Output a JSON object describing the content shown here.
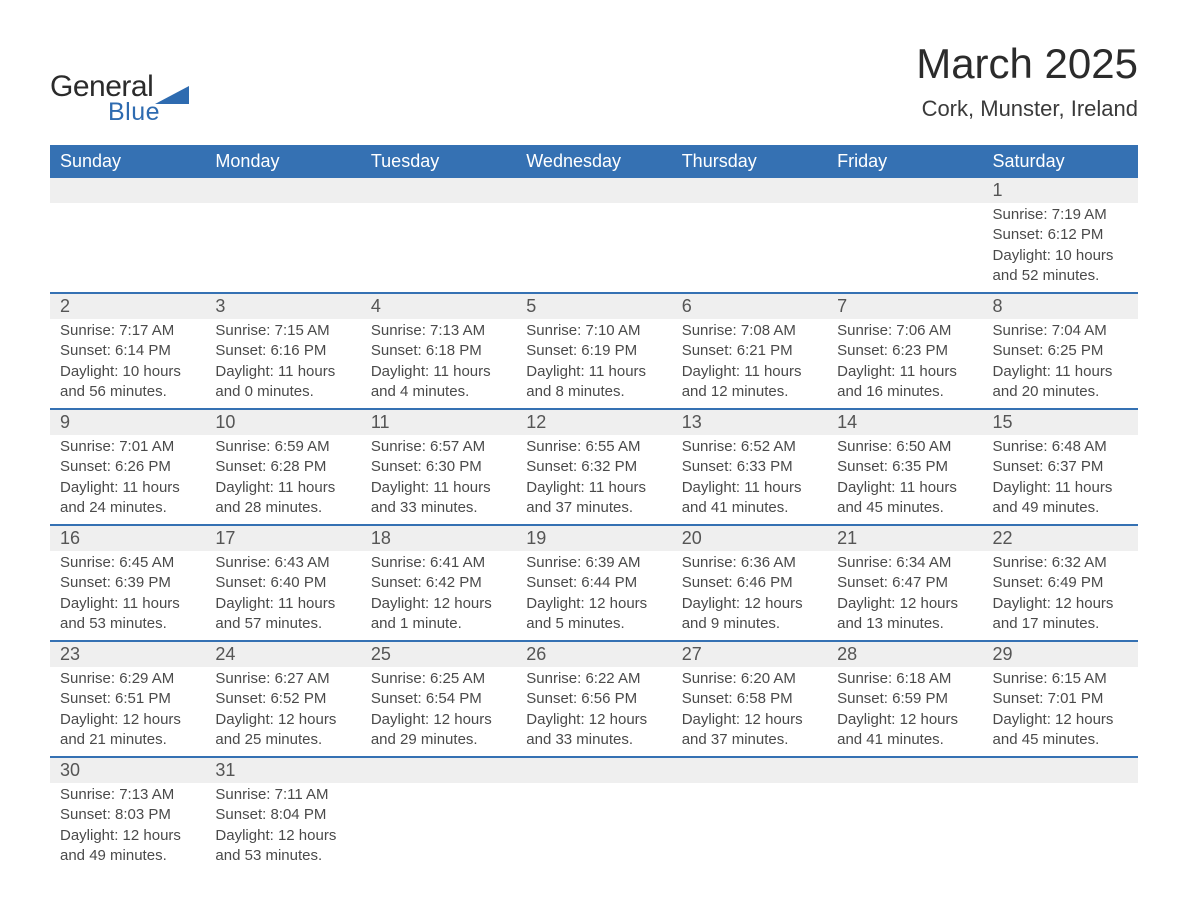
{
  "logo": {
    "text1": "General",
    "text2": "Blue",
    "shape_color": "#2e6bb0"
  },
  "title": "March 2025",
  "location": "Cork, Munster, Ireland",
  "colors": {
    "header_bg": "#3571b3",
    "header_text": "#ffffff",
    "daynum_bg": "#efefef",
    "border": "#3571b3",
    "text": "#4a4a4a"
  },
  "day_headers": [
    "Sunday",
    "Monday",
    "Tuesday",
    "Wednesday",
    "Thursday",
    "Friday",
    "Saturday"
  ],
  "weeks": [
    {
      "nums": [
        "",
        "",
        "",
        "",
        "",
        "",
        "1"
      ],
      "data": [
        "",
        "",
        "",
        "",
        "",
        "",
        "Sunrise: 7:19 AM\nSunset: 6:12 PM\nDaylight: 10 hours and 52 minutes."
      ]
    },
    {
      "nums": [
        "2",
        "3",
        "4",
        "5",
        "6",
        "7",
        "8"
      ],
      "data": [
        "Sunrise: 7:17 AM\nSunset: 6:14 PM\nDaylight: 10 hours and 56 minutes.",
        "Sunrise: 7:15 AM\nSunset: 6:16 PM\nDaylight: 11 hours and 0 minutes.",
        "Sunrise: 7:13 AM\nSunset: 6:18 PM\nDaylight: 11 hours and 4 minutes.",
        "Sunrise: 7:10 AM\nSunset: 6:19 PM\nDaylight: 11 hours and 8 minutes.",
        "Sunrise: 7:08 AM\nSunset: 6:21 PM\nDaylight: 11 hours and 12 minutes.",
        "Sunrise: 7:06 AM\nSunset: 6:23 PM\nDaylight: 11 hours and 16 minutes.",
        "Sunrise: 7:04 AM\nSunset: 6:25 PM\nDaylight: 11 hours and 20 minutes."
      ]
    },
    {
      "nums": [
        "9",
        "10",
        "11",
        "12",
        "13",
        "14",
        "15"
      ],
      "data": [
        "Sunrise: 7:01 AM\nSunset: 6:26 PM\nDaylight: 11 hours and 24 minutes.",
        "Sunrise: 6:59 AM\nSunset: 6:28 PM\nDaylight: 11 hours and 28 minutes.",
        "Sunrise: 6:57 AM\nSunset: 6:30 PM\nDaylight: 11 hours and 33 minutes.",
        "Sunrise: 6:55 AM\nSunset: 6:32 PM\nDaylight: 11 hours and 37 minutes.",
        "Sunrise: 6:52 AM\nSunset: 6:33 PM\nDaylight: 11 hours and 41 minutes.",
        "Sunrise: 6:50 AM\nSunset: 6:35 PM\nDaylight: 11 hours and 45 minutes.",
        "Sunrise: 6:48 AM\nSunset: 6:37 PM\nDaylight: 11 hours and 49 minutes."
      ]
    },
    {
      "nums": [
        "16",
        "17",
        "18",
        "19",
        "20",
        "21",
        "22"
      ],
      "data": [
        "Sunrise: 6:45 AM\nSunset: 6:39 PM\nDaylight: 11 hours and 53 minutes.",
        "Sunrise: 6:43 AM\nSunset: 6:40 PM\nDaylight: 11 hours and 57 minutes.",
        "Sunrise: 6:41 AM\nSunset: 6:42 PM\nDaylight: 12 hours and 1 minute.",
        "Sunrise: 6:39 AM\nSunset: 6:44 PM\nDaylight: 12 hours and 5 minutes.",
        "Sunrise: 6:36 AM\nSunset: 6:46 PM\nDaylight: 12 hours and 9 minutes.",
        "Sunrise: 6:34 AM\nSunset: 6:47 PM\nDaylight: 12 hours and 13 minutes.",
        "Sunrise: 6:32 AM\nSunset: 6:49 PM\nDaylight: 12 hours and 17 minutes."
      ]
    },
    {
      "nums": [
        "23",
        "24",
        "25",
        "26",
        "27",
        "28",
        "29"
      ],
      "data": [
        "Sunrise: 6:29 AM\nSunset: 6:51 PM\nDaylight: 12 hours and 21 minutes.",
        "Sunrise: 6:27 AM\nSunset: 6:52 PM\nDaylight: 12 hours and 25 minutes.",
        "Sunrise: 6:25 AM\nSunset: 6:54 PM\nDaylight: 12 hours and 29 minutes.",
        "Sunrise: 6:22 AM\nSunset: 6:56 PM\nDaylight: 12 hours and 33 minutes.",
        "Sunrise: 6:20 AM\nSunset: 6:58 PM\nDaylight: 12 hours and 37 minutes.",
        "Sunrise: 6:18 AM\nSunset: 6:59 PM\nDaylight: 12 hours and 41 minutes.",
        "Sunrise: 6:15 AM\nSunset: 7:01 PM\nDaylight: 12 hours and 45 minutes."
      ]
    },
    {
      "nums": [
        "30",
        "31",
        "",
        "",
        "",
        "",
        ""
      ],
      "data": [
        "Sunrise: 7:13 AM\nSunset: 8:03 PM\nDaylight: 12 hours and 49 minutes.",
        "Sunrise: 7:11 AM\nSunset: 8:04 PM\nDaylight: 12 hours and 53 minutes.",
        "",
        "",
        "",
        "",
        ""
      ]
    }
  ]
}
